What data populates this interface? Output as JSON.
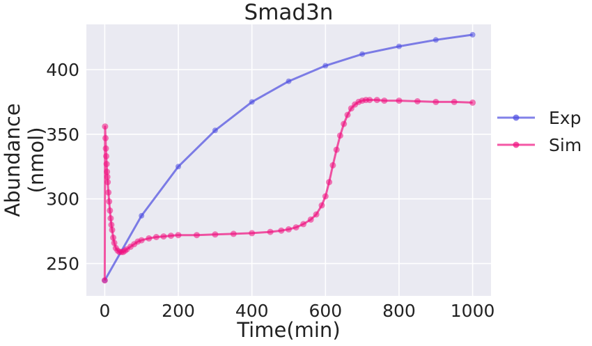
{
  "chart_data": {
    "type": "line",
    "title": "Smad3n",
    "xlabel": "Time(min)",
    "ylabel": [
      "Abundance",
      "(nmol)"
    ],
    "xlim": [
      -50,
      1050
    ],
    "ylim": [
      225,
      435
    ],
    "xticks": [
      0,
      200,
      400,
      600,
      800,
      1000
    ],
    "yticks": [
      250,
      300,
      350,
      400
    ],
    "grid": true,
    "legend_position": "right",
    "series": [
      {
        "name": "Exp",
        "color": "#4b4be0",
        "x": [
          0,
          100,
          200,
          300,
          400,
          500,
          600,
          700,
          800,
          900,
          1000
        ],
        "y": [
          237,
          287,
          325,
          353,
          375,
          391,
          403,
          412,
          418,
          423,
          427
        ]
      },
      {
        "name": "Sim",
        "color": "#f0107f",
        "x": [
          0,
          1,
          2,
          3,
          4,
          5,
          6,
          7,
          8,
          10,
          12,
          14,
          16,
          18,
          20,
          23,
          26,
          30,
          35,
          40,
          45,
          50,
          55,
          60,
          70,
          80,
          90,
          100,
          120,
          140,
          160,
          180,
          200,
          250,
          300,
          350,
          400,
          450,
          480,
          500,
          520,
          540,
          560,
          575,
          590,
          600,
          610,
          620,
          630,
          640,
          650,
          660,
          670,
          680,
          690,
          700,
          710,
          720,
          740,
          760,
          800,
          850,
          900,
          950,
          1000
        ],
        "y": [
          237,
          356,
          347,
          339,
          333,
          327,
          321,
          317,
          313,
          305,
          298,
          291,
          285,
          280,
          276,
          270,
          266,
          262,
          260,
          259,
          259,
          259,
          260,
          261,
          263,
          265,
          267,
          268,
          269.5,
          270.5,
          271,
          271.5,
          272,
          272,
          272.5,
          273,
          273.5,
          274.5,
          275.5,
          276.5,
          278,
          280.5,
          284,
          288,
          295,
          302,
          313,
          326,
          338,
          349,
          358,
          365,
          370,
          373,
          375,
          376,
          376.5,
          376.5,
          376.5,
          376,
          376,
          375.5,
          375,
          375,
          374.5
        ]
      }
    ]
  }
}
